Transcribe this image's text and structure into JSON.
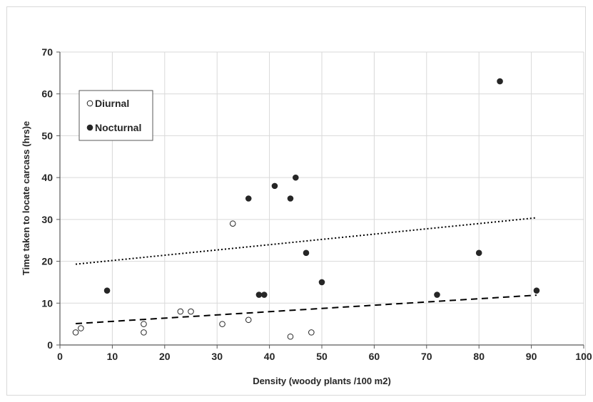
{
  "chart_data": {
    "type": "scatter",
    "title": "",
    "xlabel": "Density  (woody plants /100 m2)",
    "ylabel": "Time taken to locate carcass (hrs)e",
    "xlim": [
      0,
      100
    ],
    "ylim": [
      0,
      70
    ],
    "xticks": [
      0,
      10,
      20,
      30,
      40,
      50,
      60,
      70,
      80,
      90,
      100
    ],
    "yticks": [
      0,
      10,
      20,
      30,
      40,
      50,
      60,
      70
    ],
    "grid": true,
    "legend_position": "top-left",
    "series": [
      {
        "name": "Diurnal",
        "marker": "open-circle",
        "color": "#262626",
        "points": [
          [
            3,
            3
          ],
          [
            4,
            4
          ],
          [
            16,
            3
          ],
          [
            16,
            5
          ],
          [
            23,
            8
          ],
          [
            25,
            8
          ],
          [
            31,
            5
          ],
          [
            33,
            29
          ],
          [
            36,
            6
          ],
          [
            44,
            2
          ],
          [
            48,
            3
          ]
        ],
        "trendline": {
          "style": "dashed",
          "x": [
            3,
            91
          ],
          "y": [
            5.1,
            11.9
          ]
        }
      },
      {
        "name": "Nocturnal",
        "marker": "filled-circle",
        "color": "#262626",
        "points": [
          [
            9,
            13
          ],
          [
            36,
            35
          ],
          [
            38,
            12
          ],
          [
            39,
            12
          ],
          [
            41,
            38
          ],
          [
            44,
            35
          ],
          [
            45,
            40
          ],
          [
            47,
            22
          ],
          [
            50,
            15
          ],
          [
            72,
            12
          ],
          [
            80,
            22
          ],
          [
            84,
            63
          ],
          [
            91,
            13
          ]
        ],
        "trendline": {
          "style": "dotted",
          "x": [
            3,
            91
          ],
          "y": [
            19.3,
            30.4
          ]
        }
      }
    ]
  },
  "legend": {
    "diurnal_label": "Diurnal",
    "nocturnal_label": "Nocturnal"
  },
  "axis_text": {
    "xlabel": "Density  (woody plants /100 m2)",
    "ylabel": "Time taken to locate carcass (hrs)e"
  }
}
